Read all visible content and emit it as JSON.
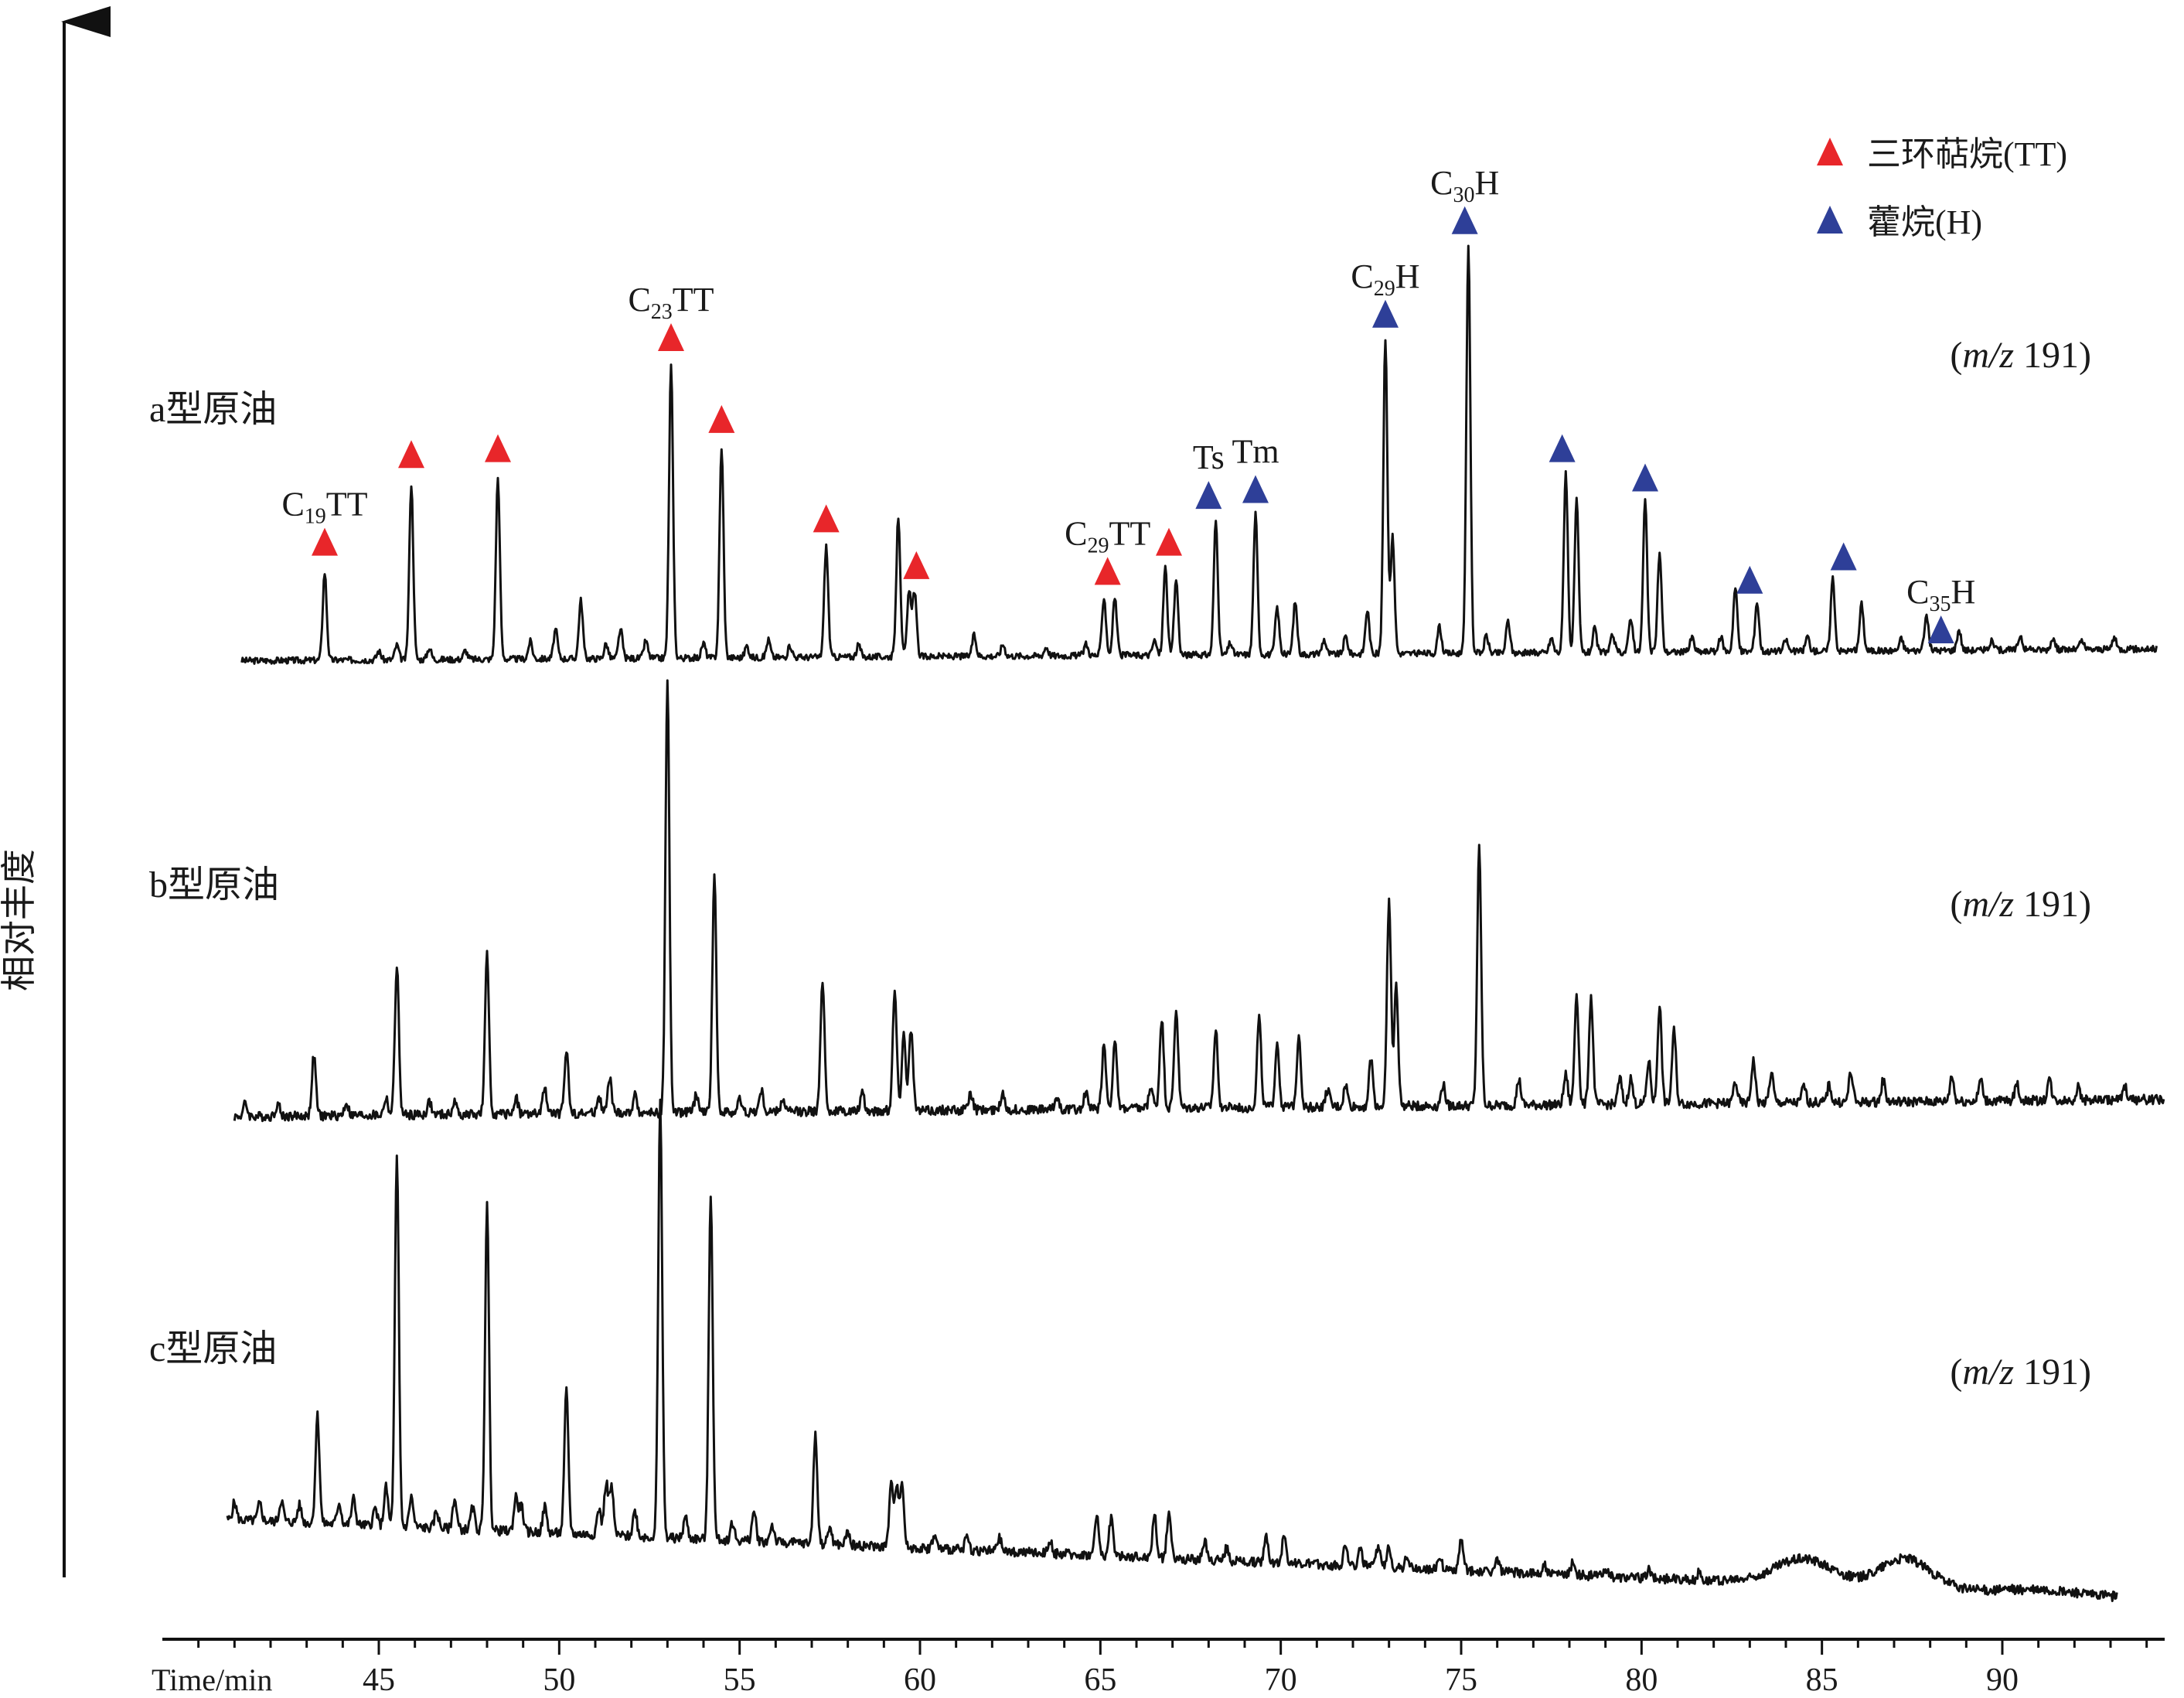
{
  "chart_data": {
    "type": "line",
    "ylabel": "相对丰度",
    "xlabel": "Time/min",
    "xlim": [
      39,
      94.5
    ],
    "x_ticks": [
      45,
      50,
      55,
      60,
      65,
      70,
      75,
      80,
      85,
      90
    ],
    "x_minor_step": 1,
    "colors": {
      "tt": "#e8262a",
      "hopane": "#2e3f98",
      "trace": "#111111"
    },
    "legend": {
      "position": "top-right",
      "items": [
        {
          "key": "tt",
          "label": "三环萜烷(TT)"
        },
        {
          "key": "hopane",
          "label": "藿烷(H)"
        }
      ]
    },
    "series": [
      {
        "name": "a型原油",
        "ion_label": "(m/z 191)",
        "ion_italic": "m/z",
        "ion_num": "191",
        "x_start": 41.2,
        "x_end": 94.3,
        "start_level": 0.02,
        "end_level": 0.06,
        "hump_peaks": [],
        "peaks": [
          [
            43.5,
            0.3
          ],
          [
            45.0,
            0.03
          ],
          [
            45.5,
            0.05
          ],
          [
            45.9,
            0.6
          ],
          [
            46.4,
            0.04
          ],
          [
            47.4,
            0.03
          ],
          [
            48.3,
            0.62
          ],
          [
            49.2,
            0.06
          ],
          [
            49.9,
            0.1
          ],
          [
            50.6,
            0.2
          ],
          [
            51.3,
            0.05
          ],
          [
            51.7,
            0.1
          ],
          [
            52.4,
            0.06
          ],
          [
            53.1,
            1.0
          ],
          [
            54.0,
            0.05
          ],
          [
            54.5,
            0.72
          ],
          [
            55.2,
            0.04
          ],
          [
            55.8,
            0.06
          ],
          [
            56.4,
            0.04
          ],
          [
            57.4,
            0.38
          ],
          [
            58.3,
            0.04
          ],
          [
            59.4,
            0.48
          ],
          [
            59.7,
            0.22
          ],
          [
            59.85,
            0.22
          ],
          [
            61.5,
            0.07
          ],
          [
            62.3,
            0.04
          ],
          [
            63.5,
            0.03
          ],
          [
            64.6,
            0.04
          ],
          [
            65.1,
            0.2
          ],
          [
            65.4,
            0.2
          ],
          [
            66.5,
            0.05
          ],
          [
            66.8,
            0.3
          ],
          [
            67.1,
            0.26
          ],
          [
            68.2,
            0.46
          ],
          [
            68.6,
            0.04
          ],
          [
            69.3,
            0.48
          ],
          [
            69.9,
            0.16
          ],
          [
            70.4,
            0.18
          ],
          [
            71.2,
            0.05
          ],
          [
            71.8,
            0.06
          ],
          [
            72.4,
            0.15
          ],
          [
            72.9,
            1.08
          ],
          [
            73.1,
            0.4
          ],
          [
            74.4,
            0.09
          ],
          [
            75.2,
            1.4
          ],
          [
            75.7,
            0.06
          ],
          [
            76.3,
            0.11
          ],
          [
            77.5,
            0.05
          ],
          [
            77.9,
            0.62
          ],
          [
            78.2,
            0.52
          ],
          [
            78.7,
            0.08
          ],
          [
            79.2,
            0.06
          ],
          [
            79.7,
            0.12
          ],
          [
            80.1,
            0.52
          ],
          [
            80.5,
            0.34
          ],
          [
            81.4,
            0.05
          ],
          [
            82.2,
            0.05
          ],
          [
            82.6,
            0.22
          ],
          [
            83.2,
            0.17
          ],
          [
            84.0,
            0.04
          ],
          [
            84.6,
            0.05
          ],
          [
            85.3,
            0.25
          ],
          [
            86.1,
            0.16
          ],
          [
            87.2,
            0.04
          ],
          [
            87.9,
            0.12
          ],
          [
            88.8,
            0.07
          ],
          [
            89.7,
            0.03
          ],
          [
            90.5,
            0.05
          ],
          [
            91.4,
            0.04
          ],
          [
            92.2,
            0.03
          ],
          [
            93.1,
            0.04
          ]
        ]
      },
      {
        "name": "b型原油",
        "ion_label": "(m/z 191)",
        "ion_italic": "m/z",
        "ion_num": "191",
        "x_start": 41.0,
        "x_end": 94.5,
        "start_level": 0.0,
        "end_level": 0.04,
        "hump_peaks": [],
        "peaks": [
          [
            41.3,
            0.03
          ],
          [
            42.2,
            0.03
          ],
          [
            43.2,
            0.14
          ],
          [
            44.1,
            0.03
          ],
          [
            45.2,
            0.04
          ],
          [
            45.5,
            0.35
          ],
          [
            46.4,
            0.03
          ],
          [
            47.1,
            0.03
          ],
          [
            48.0,
            0.37
          ],
          [
            48.8,
            0.04
          ],
          [
            49.6,
            0.06
          ],
          [
            50.2,
            0.15
          ],
          [
            51.1,
            0.04
          ],
          [
            51.4,
            0.08
          ],
          [
            52.1,
            0.04
          ],
          [
            53.0,
            1.0
          ],
          [
            53.8,
            0.04
          ],
          [
            54.3,
            0.55
          ],
          [
            55.0,
            0.03
          ],
          [
            55.6,
            0.05
          ],
          [
            56.2,
            0.03
          ],
          [
            57.3,
            0.31
          ],
          [
            58.4,
            0.04
          ],
          [
            59.3,
            0.28
          ],
          [
            59.55,
            0.18
          ],
          [
            59.75,
            0.19
          ],
          [
            61.4,
            0.04
          ],
          [
            62.3,
            0.04
          ],
          [
            63.8,
            0.03
          ],
          [
            64.6,
            0.04
          ],
          [
            65.1,
            0.15
          ],
          [
            65.4,
            0.16
          ],
          [
            66.4,
            0.05
          ],
          [
            66.7,
            0.21
          ],
          [
            67.1,
            0.23
          ],
          [
            68.2,
            0.18
          ],
          [
            69.4,
            0.21
          ],
          [
            69.9,
            0.15
          ],
          [
            70.5,
            0.17
          ],
          [
            71.3,
            0.04
          ],
          [
            71.8,
            0.05
          ],
          [
            72.5,
            0.11
          ],
          [
            73.0,
            0.48
          ],
          [
            73.2,
            0.28
          ],
          [
            74.5,
            0.05
          ],
          [
            75.5,
            0.6
          ],
          [
            76.6,
            0.06
          ],
          [
            77.9,
            0.07
          ],
          [
            78.2,
            0.26
          ],
          [
            78.6,
            0.25
          ],
          [
            79.4,
            0.06
          ],
          [
            79.7,
            0.06
          ],
          [
            80.2,
            0.1
          ],
          [
            80.5,
            0.23
          ],
          [
            80.9,
            0.17
          ],
          [
            82.6,
            0.05
          ],
          [
            83.1,
            0.1
          ],
          [
            83.6,
            0.07
          ],
          [
            84.5,
            0.04
          ],
          [
            85.2,
            0.04
          ],
          [
            85.8,
            0.07
          ],
          [
            86.7,
            0.05
          ],
          [
            88.6,
            0.06
          ],
          [
            89.4,
            0.05
          ],
          [
            90.4,
            0.04
          ],
          [
            91.3,
            0.05
          ],
          [
            92.1,
            0.03
          ],
          [
            93.4,
            0.03
          ]
        ]
      },
      {
        "name": "c型原油",
        "ion_label": "(m/z 191)",
        "ion_italic": "m/z",
        "ion_num": "191",
        "x_start": 40.8,
        "x_end": 93.2,
        "start_level": 0.18,
        "end_level": 0.0,
        "hump_peaks": [
          [
            84.5,
            0.06,
            0.8
          ],
          [
            87.3,
            0.07,
            0.7
          ],
          [
            91.0,
            0.01,
            1.2
          ]
        ],
        "peaks": [
          [
            41.0,
            0.04
          ],
          [
            41.7,
            0.04
          ],
          [
            42.3,
            0.05
          ],
          [
            42.8,
            0.04
          ],
          [
            43.3,
            0.25
          ],
          [
            43.9,
            0.05
          ],
          [
            44.3,
            0.06
          ],
          [
            44.9,
            0.04
          ],
          [
            45.2,
            0.09
          ],
          [
            45.5,
            0.85
          ],
          [
            45.9,
            0.07
          ],
          [
            46.6,
            0.04
          ],
          [
            47.1,
            0.07
          ],
          [
            47.6,
            0.05
          ],
          [
            48.0,
            0.75
          ],
          [
            48.8,
            0.08
          ],
          [
            48.95,
            0.06
          ],
          [
            49.6,
            0.06
          ],
          [
            50.2,
            0.33
          ],
          [
            51.1,
            0.06
          ],
          [
            51.3,
            0.12
          ],
          [
            51.45,
            0.11
          ],
          [
            52.1,
            0.06
          ],
          [
            52.8,
            1.0
          ],
          [
            53.5,
            0.05
          ],
          [
            54.2,
            0.8
          ],
          [
            54.8,
            0.04
          ],
          [
            55.4,
            0.07
          ],
          [
            55.9,
            0.04
          ],
          [
            57.1,
            0.25
          ],
          [
            57.5,
            0.04
          ],
          [
            58.0,
            0.03
          ],
          [
            59.2,
            0.14
          ],
          [
            59.35,
            0.14
          ],
          [
            59.5,
            0.15
          ],
          [
            60.4,
            0.03
          ],
          [
            61.3,
            0.03
          ],
          [
            62.2,
            0.03
          ],
          [
            63.6,
            0.03
          ],
          [
            64.9,
            0.09
          ],
          [
            65.3,
            0.09
          ],
          [
            66.5,
            0.1
          ],
          [
            66.9,
            0.11
          ],
          [
            67.9,
            0.04
          ],
          [
            68.5,
            0.03
          ],
          [
            69.6,
            0.06
          ],
          [
            70.1,
            0.07
          ],
          [
            71.8,
            0.05
          ],
          [
            72.2,
            0.04
          ],
          [
            72.7,
            0.05
          ],
          [
            73.0,
            0.05
          ],
          [
            73.5,
            0.03
          ],
          [
            74.4,
            0.03
          ],
          [
            75.0,
            0.07
          ],
          [
            76.0,
            0.03
          ],
          [
            77.3,
            0.02
          ],
          [
            78.1,
            0.03
          ],
          [
            79.0,
            0.02
          ],
          [
            80.2,
            0.02
          ],
          [
            81.6,
            0.02
          ]
        ]
      }
    ],
    "markers": [
      {
        "series": 0,
        "x": 43.5,
        "kind": "tt",
        "label_base": "C",
        "label_sub": "19",
        "label_tail": "TT"
      },
      {
        "series": 0,
        "x": 45.9,
        "kind": "tt"
      },
      {
        "series": 0,
        "x": 48.3,
        "kind": "tt"
      },
      {
        "series": 0,
        "x": 53.1,
        "kind": "tt",
        "label_base": "C",
        "label_sub": "23",
        "label_tail": "TT"
      },
      {
        "series": 0,
        "x": 54.5,
        "kind": "tt"
      },
      {
        "series": 0,
        "x": 57.4,
        "kind": "tt"
      },
      {
        "series": 0,
        "x": 59.9,
        "kind": "tt"
      },
      {
        "series": 0,
        "x": 65.2,
        "kind": "tt",
        "label_base": "C",
        "label_sub": "29",
        "label_tail": "TT"
      },
      {
        "series": 0,
        "x": 66.9,
        "kind": "tt"
      },
      {
        "series": 0,
        "x": 68.0,
        "kind": "hopane",
        "label_base": "Ts"
      },
      {
        "series": 0,
        "x": 69.3,
        "kind": "hopane",
        "label_base": "Tm"
      },
      {
        "series": 0,
        "x": 72.9,
        "kind": "hopane",
        "label_base": "C",
        "label_sub": "29",
        "label_tail": "H"
      },
      {
        "series": 0,
        "x": 75.1,
        "kind": "hopane",
        "label_base": "C",
        "label_sub": "30",
        "label_tail": "H"
      },
      {
        "series": 0,
        "x": 77.8,
        "kind": "hopane"
      },
      {
        "series": 0,
        "x": 80.1,
        "kind": "hopane"
      },
      {
        "series": 0,
        "x": 83.0,
        "kind": "hopane"
      },
      {
        "series": 0,
        "x": 85.6,
        "kind": "hopane"
      },
      {
        "series": 0,
        "x": 88.3,
        "kind": "hopane",
        "label_base": "C",
        "label_sub": "35",
        "label_tail": "H"
      }
    ]
  }
}
